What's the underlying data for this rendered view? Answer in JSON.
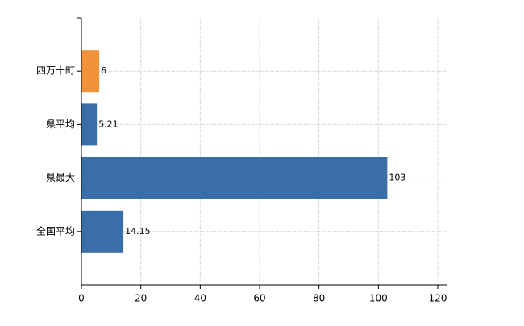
{
  "chart_data": {
    "type": "hbar",
    "categories": [
      "四万十町",
      "県平均",
      "県最大",
      "全国平均"
    ],
    "values": [
      6,
      5.21,
      103,
      14.15
    ],
    "colors": [
      "#f0923a",
      "#3a6ea8",
      "#3a6ea8",
      "#3a6ea8"
    ],
    "xlim": [
      0,
      120
    ],
    "xticks": [
      0,
      20,
      40,
      60,
      80,
      100,
      120
    ],
    "grid": true
  }
}
